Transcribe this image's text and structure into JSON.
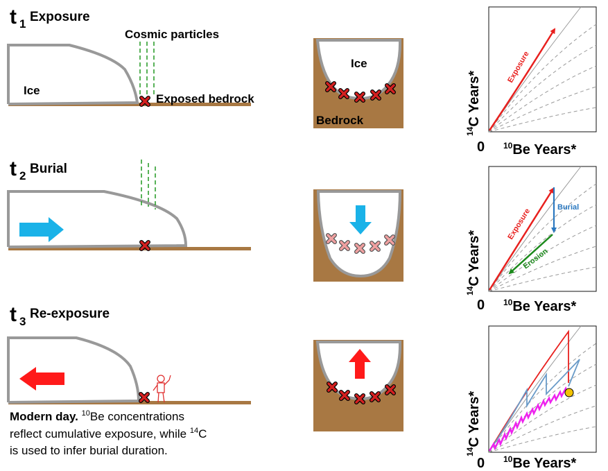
{
  "stages": [
    {
      "t_sub": "1",
      "label": "Exposure"
    },
    {
      "t_sub": "2",
      "label": "Burial"
    },
    {
      "t_sub": "3",
      "label": "Re-exposure"
    }
  ],
  "panel1": {
    "cosmic": "Cosmic particles",
    "ice": "Ice",
    "bedrock_exposed": "Exposed bedrock"
  },
  "cross_section": {
    "ice": "Ice",
    "bedrock": "Bedrock"
  },
  "caption": {
    "bold": "Modern day.",
    "sup1": "10",
    "part1": "Be concentrations",
    "line2a": "reflect cumulative exposure, while ",
    "sup2": "14",
    "line2b": "C",
    "line3": "is used to infer burial duration."
  },
  "plots": {
    "ylabel_sup": "14",
    "ylabel_main": "C Years*",
    "xlabel_sup": "10",
    "xlabel_main": "Be Years*",
    "origin": "0",
    "arrow_exposure": "Exposure",
    "arrow_burial": "Burial",
    "arrow_erosion": "Erosion"
  },
  "colors": {
    "ice_outline": "#999999",
    "bedrock": "#a87843",
    "cosmic": "#2e9e2e",
    "marker_red": "#d42020",
    "marker_pink": "#f0a0a0",
    "flow_blue": "#1ab2e8",
    "flow_red": "#ff1a1a",
    "exposure": "#e8201e",
    "burial": "#2a78c0",
    "erosion": "#1c8a1c",
    "magenta": "#ee22ee",
    "history_blue": "#6a9bc8",
    "sample_point": "#f2c200"
  }
}
